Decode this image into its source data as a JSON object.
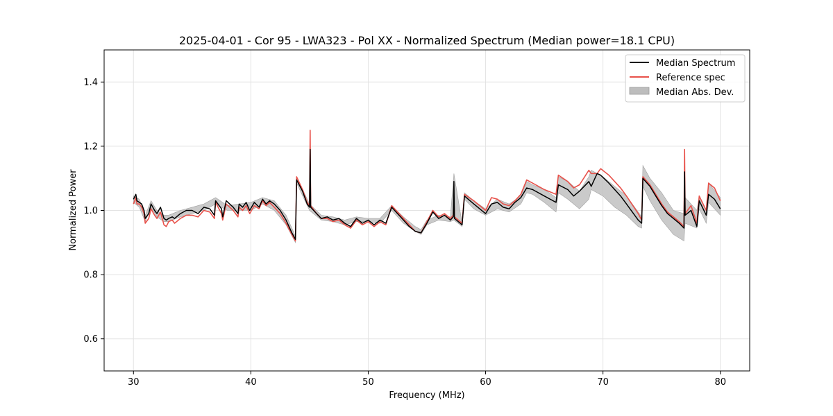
{
  "chart_data": {
    "type": "line",
    "title": "2025-04-01 - Cor 95 - LWA323 - Pol XX - Normalized Spectrum (Median power=18.1 CPU)",
    "xlabel": "Frequency (MHz)",
    "ylabel": "Normalized Power",
    "xlim": [
      27.5,
      82.5
    ],
    "ylim": [
      0.5,
      1.5
    ],
    "xticks": [
      30,
      40,
      50,
      60,
      70,
      80
    ],
    "yticks": [
      0.6,
      0.8,
      1.0,
      1.2,
      1.4
    ],
    "xtick_labels": [
      "30",
      "40",
      "50",
      "60",
      "70",
      "80"
    ],
    "ytick_labels": [
      "0.6",
      "0.8",
      "1.0",
      "1.2",
      "1.4"
    ],
    "grid": true,
    "legend_position": "top-right",
    "colors": {
      "median": "#000000",
      "reference": "#e8514a",
      "mad": "#bdbdbd"
    },
    "series": [
      {
        "name": "Median Spectrum",
        "x": [
          30.0,
          30.2,
          30.3,
          30.5,
          30.7,
          30.9,
          31.0,
          31.3,
          31.5,
          31.8,
          32.0,
          32.3,
          32.6,
          32.8,
          33.0,
          33.3,
          33.5,
          34.0,
          34.5,
          35.0,
          35.5,
          36.0,
          36.5,
          36.9,
          37.0,
          37.5,
          37.6,
          37.9,
          38.5,
          38.9,
          39.0,
          39.3,
          39.6,
          39.9,
          40.3,
          40.7,
          41.0,
          41.3,
          41.6,
          42.0,
          42.5,
          43.0,
          43.5,
          43.8,
          43.9,
          44.4,
          44.8,
          45.0,
          45.05,
          45.1,
          45.6,
          46.0,
          46.5,
          47.0,
          47.5,
          48.0,
          48.5,
          49.0,
          49.5,
          50.0,
          50.5,
          51.0,
          51.5,
          52.0,
          52.5,
          53.0,
          53.5,
          54.0,
          54.5,
          55.0,
          55.5,
          56.0,
          56.5,
          57.0,
          57.25,
          57.3,
          57.35,
          58.0,
          58.2,
          59.0,
          59.5,
          60.0,
          60.5,
          61.0,
          61.5,
          62.0,
          62.5,
          63.0,
          63.5,
          64.0,
          65.0,
          66.0,
          66.2,
          67.0,
          67.5,
          68.0,
          68.8,
          69.0,
          69.5,
          69.8,
          70.5,
          71.0,
          71.5,
          72.0,
          73.0,
          73.3,
          73.4,
          74.0,
          74.5,
          75.0,
          75.5,
          76.0,
          76.5,
          76.9,
          76.95,
          77.0,
          77.5,
          78.0,
          78.2,
          78.8,
          79.0,
          79.5,
          80.0
        ],
        "y": [
          1.035,
          1.05,
          1.03,
          1.025,
          1.02,
          1.0,
          0.975,
          0.99,
          1.02,
          1.0,
          0.99,
          1.01,
          0.975,
          0.97,
          0.975,
          0.98,
          0.975,
          0.99,
          1.0,
          1.0,
          0.99,
          1.01,
          1.005,
          0.985,
          1.03,
          1.005,
          0.98,
          1.03,
          1.01,
          0.99,
          1.02,
          1.01,
          1.025,
          1.0,
          1.025,
          1.01,
          1.035,
          1.02,
          1.03,
          1.02,
          1.0,
          0.97,
          0.93,
          0.91,
          1.095,
          1.06,
          1.02,
          1.01,
          1.19,
          1.01,
          0.99,
          0.975,
          0.98,
          0.97,
          0.975,
          0.96,
          0.95,
          0.975,
          0.96,
          0.97,
          0.955,
          0.97,
          0.96,
          1.01,
          0.99,
          0.97,
          0.95,
          0.935,
          0.93,
          0.96,
          0.995,
          0.975,
          0.985,
          0.97,
          0.98,
          1.09,
          0.975,
          0.955,
          1.045,
          1.02,
          1.005,
          0.99,
          1.02,
          1.025,
          1.01,
          1.005,
          1.025,
          1.04,
          1.07,
          1.065,
          1.045,
          1.025,
          1.08,
          1.065,
          1.045,
          1.06,
          1.09,
          1.075,
          1.115,
          1.11,
          1.085,
          1.065,
          1.045,
          1.02,
          0.97,
          0.96,
          1.1,
          1.075,
          1.045,
          1.015,
          0.99,
          0.975,
          0.96,
          0.945,
          1.12,
          0.985,
          1.0,
          0.95,
          1.03,
          0.985,
          1.05,
          1.035,
          1.005
        ]
      },
      {
        "name": "Reference spec",
        "x": [
          30.0,
          30.2,
          30.3,
          30.5,
          30.7,
          30.9,
          31.0,
          31.3,
          31.5,
          31.8,
          32.0,
          32.3,
          32.6,
          32.8,
          33.0,
          33.3,
          33.5,
          34.0,
          34.5,
          35.0,
          35.5,
          36.0,
          36.5,
          36.9,
          37.0,
          37.5,
          37.6,
          37.9,
          38.5,
          38.9,
          39.0,
          39.3,
          39.6,
          39.9,
          40.3,
          40.7,
          41.0,
          41.3,
          41.6,
          42.0,
          42.5,
          43.0,
          43.5,
          43.8,
          43.9,
          44.4,
          44.8,
          45.0,
          45.05,
          45.1,
          45.6,
          46.0,
          46.5,
          47.0,
          47.5,
          48.0,
          48.5,
          49.0,
          49.5,
          50.0,
          50.5,
          51.0,
          51.5,
          52.0,
          52.5,
          53.0,
          53.5,
          54.0,
          54.5,
          55.0,
          55.5,
          56.0,
          56.5,
          57.0,
          57.25,
          57.3,
          57.35,
          58.0,
          58.2,
          59.0,
          59.5,
          60.0,
          60.5,
          61.0,
          61.5,
          62.0,
          62.5,
          63.0,
          63.5,
          64.0,
          65.0,
          66.0,
          66.2,
          67.0,
          67.5,
          68.0,
          68.8,
          69.0,
          69.5,
          69.8,
          70.5,
          71.0,
          71.5,
          72.0,
          73.0,
          73.3,
          73.4,
          74.0,
          74.5,
          75.0,
          75.5,
          76.0,
          76.5,
          76.9,
          76.95,
          77.0,
          77.5,
          78.0,
          78.2,
          78.8,
          79.0,
          79.5,
          80.0
        ],
        "y": [
          1.02,
          1.04,
          1.02,
          1.02,
          1.01,
          0.99,
          0.96,
          0.975,
          1.005,
          0.985,
          0.975,
          0.995,
          0.955,
          0.95,
          0.965,
          0.97,
          0.96,
          0.975,
          0.985,
          0.985,
          0.98,
          1.0,
          0.995,
          0.975,
          1.025,
          0.99,
          0.97,
          1.02,
          1.0,
          0.98,
          1.01,
          1.0,
          1.015,
          0.99,
          1.015,
          1.005,
          1.03,
          1.015,
          1.025,
          1.01,
          0.99,
          0.96,
          0.925,
          0.905,
          1.105,
          1.065,
          1.025,
          1.015,
          1.25,
          1.015,
          0.99,
          0.975,
          0.975,
          0.965,
          0.97,
          0.955,
          0.945,
          0.97,
          0.955,
          0.965,
          0.95,
          0.965,
          0.955,
          1.015,
          0.995,
          0.975,
          0.955,
          0.935,
          0.93,
          0.965,
          1.0,
          0.98,
          0.99,
          0.975,
          0.985,
          1.04,
          0.98,
          0.96,
          1.05,
          1.03,
          1.015,
          1.0,
          1.04,
          1.035,
          1.02,
          1.015,
          1.03,
          1.05,
          1.095,
          1.085,
          1.065,
          1.05,
          1.11,
          1.09,
          1.07,
          1.08,
          1.125,
          1.115,
          1.115,
          1.13,
          1.11,
          1.09,
          1.07,
          1.045,
          0.99,
          0.97,
          1.105,
          1.08,
          1.05,
          1.02,
          0.995,
          0.98,
          0.965,
          0.95,
          1.19,
          0.99,
          1.015,
          0.96,
          1.045,
          1.0,
          1.085,
          1.07,
          1.03
        ]
      },
      {
        "name": "Median Abs. Dev.",
        "x": [
          30.0,
          30.5,
          31.0,
          31.5,
          32.0,
          32.6,
          33.0,
          34.0,
          35.0,
          36.0,
          37.0,
          38.0,
          39.0,
          40.0,
          41.0,
          42.0,
          43.0,
          43.8,
          43.9,
          45.0,
          46.0,
          47.0,
          48.0,
          49.0,
          50.0,
          51.0,
          52.0,
          53.0,
          54.0,
          54.5,
          55.0,
          56.0,
          57.0,
          57.3,
          58.0,
          58.2,
          59.0,
          60.0,
          61.0,
          62.0,
          63.0,
          63.5,
          64.0,
          65.0,
          66.0,
          66.2,
          67.0,
          68.0,
          68.8,
          69.0,
          70.0,
          71.0,
          72.0,
          73.0,
          73.3,
          73.4,
          74.0,
          75.0,
          76.0,
          76.9,
          77.0,
          78.0,
          78.2,
          78.8,
          79.0,
          80.0
        ],
        "lower": [
          1.025,
          1.01,
          0.965,
          1.01,
          0.98,
          0.965,
          0.965,
          0.98,
          0.99,
          1.0,
          1.02,
          1.0,
          1.0,
          1.0,
          1.02,
          1.0,
          0.955,
          0.9,
          1.085,
          1.0,
          0.97,
          0.965,
          0.955,
          0.965,
          0.965,
          0.96,
          1.0,
          0.96,
          0.935,
          0.925,
          0.955,
          0.97,
          0.965,
          0.97,
          0.95,
          1.035,
          1.005,
          0.985,
          1.005,
          0.995,
          1.02,
          1.055,
          1.05,
          1.025,
          0.995,
          1.055,
          1.035,
          1.005,
          1.035,
          1.065,
          1.045,
          1.01,
          0.985,
          0.95,
          0.945,
          1.075,
          1.03,
          0.97,
          0.925,
          0.905,
          0.96,
          0.945,
          1.005,
          0.96,
          1.025,
          0.985
        ],
        "upper": [
          1.045,
          1.035,
          0.985,
          1.03,
          1.0,
          0.985,
          0.985,
          1.0,
          1.01,
          1.02,
          1.04,
          1.015,
          1.02,
          1.025,
          1.04,
          1.03,
          0.985,
          0.92,
          1.105,
          1.02,
          0.985,
          0.98,
          0.97,
          0.98,
          0.975,
          0.975,
          1.015,
          0.98,
          0.95,
          0.94,
          0.97,
          0.985,
          0.98,
          1.115,
          0.96,
          1.055,
          1.03,
          1.005,
          1.035,
          1.02,
          1.045,
          1.09,
          1.08,
          1.065,
          1.04,
          1.105,
          1.09,
          1.06,
          1.105,
          1.125,
          1.105,
          1.075,
          1.045,
          0.995,
          0.98,
          1.14,
          1.1,
          1.055,
          1.0,
          0.99,
          1.04,
          1.0,
          1.045,
          1.0,
          1.085,
          1.04
        ]
      }
    ]
  }
}
